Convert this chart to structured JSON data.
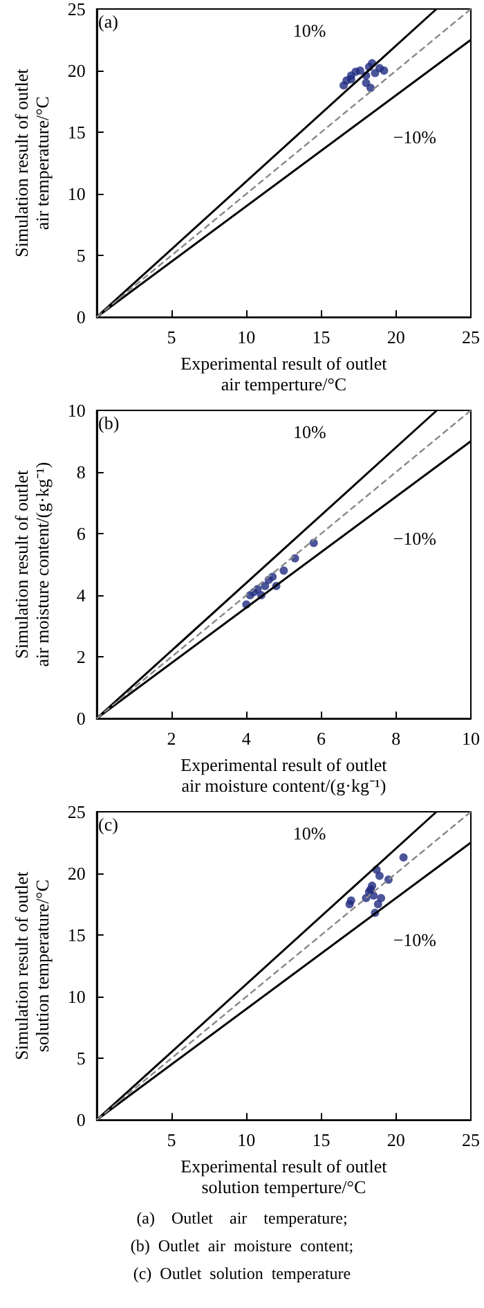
{
  "chart_data": [
    {
      "type": "scatter",
      "title": "(a)",
      "xlabel": "Experimental result of outlet\nair temperture/°C",
      "ylabel": "Simulation result of outlet\nair temperature/°C",
      "xlim": [
        0,
        25
      ],
      "ylim": [
        0,
        25
      ],
      "xticks": [
        5,
        10,
        15,
        20,
        25
      ],
      "yticks": [
        0,
        5,
        10,
        15,
        20,
        25
      ],
      "marker": "circle",
      "grid": false,
      "legend": false,
      "series": [
        {
          "type": "line",
          "name": "10%",
          "marker": "none",
          "color": "#000000",
          "line_style": "solid",
          "x": [
            0,
            22.7
          ],
          "values": [
            0,
            25
          ]
        },
        {
          "type": "line",
          "name": "−10%",
          "marker": "none",
          "color": "#000000",
          "line_style": "solid",
          "x": [
            0,
            25
          ],
          "values": [
            0,
            22.5
          ]
        },
        {
          "type": "line",
          "marker": "none",
          "color": "#888888",
          "line_style": "dashed",
          "x": [
            0,
            25
          ],
          "values": [
            0,
            25
          ]
        },
        {
          "color": "#1f2a80",
          "x": [
            16.5,
            16.7,
            17.0,
            17.3,
            17.6,
            18.0,
            18.2,
            18.4,
            18.6,
            18.9,
            19.2,
            18.3,
            18.0,
            17.0
          ],
          "values": [
            18.8,
            19.2,
            19.6,
            19.9,
            20.0,
            19.6,
            20.3,
            20.6,
            19.8,
            20.2,
            20.0,
            18.6,
            19.0,
            19.3
          ]
        }
      ]
    },
    {
      "type": "scatter",
      "title": "(b)",
      "xlabel": "Experimental result of outlet\nair moisture content/(g·kg⁻¹)",
      "ylabel": "Simulation result of outlet\nair moisture content/(g·kg⁻¹)",
      "xlim": [
        0,
        10
      ],
      "ylim": [
        0,
        10
      ],
      "xticks": [
        2,
        4,
        6,
        8,
        10
      ],
      "yticks": [
        0,
        2,
        4,
        6,
        8,
        10
      ],
      "marker": "circle",
      "grid": false,
      "legend": false,
      "series": [
        {
          "type": "line",
          "name": "10%",
          "marker": "none",
          "color": "#000000",
          "line_style": "solid",
          "x": [
            0,
            9.09
          ],
          "values": [
            0,
            10
          ]
        },
        {
          "type": "line",
          "name": "−10%",
          "marker": "none",
          "color": "#000000",
          "line_style": "solid",
          "x": [
            0,
            10
          ],
          "values": [
            0,
            9
          ]
        },
        {
          "type": "line",
          "marker": "none",
          "color": "#888888",
          "line_style": "dashed",
          "x": [
            0,
            10
          ],
          "values": [
            0,
            10
          ]
        },
        {
          "color": "#1f2a80",
          "x": [
            4.0,
            4.1,
            4.2,
            4.3,
            4.5,
            4.6,
            4.7,
            4.8,
            5.0,
            5.3,
            5.8,
            4.4
          ],
          "values": [
            3.7,
            4.0,
            4.1,
            4.2,
            4.3,
            4.5,
            4.6,
            4.3,
            4.8,
            5.2,
            5.7,
            4.0
          ]
        }
      ]
    },
    {
      "type": "scatter",
      "title": "(c)",
      "xlabel": "Experimental result of outlet\nsolution temperture/°C",
      "ylabel": "Simulation result of outlet\nsolution temperature/°C",
      "xlim": [
        0,
        25
      ],
      "ylim": [
        0,
        25
      ],
      "xticks": [
        5,
        10,
        15,
        20,
        25
      ],
      "yticks": [
        0,
        5,
        10,
        15,
        20,
        25
      ],
      "marker": "circle",
      "grid": false,
      "legend": false,
      "series": [
        {
          "type": "line",
          "name": "10%",
          "marker": "none",
          "color": "#000000",
          "line_style": "solid",
          "x": [
            0,
            22.7
          ],
          "values": [
            0,
            25
          ]
        },
        {
          "type": "line",
          "name": "−10%",
          "marker": "none",
          "color": "#000000",
          "line_style": "solid",
          "x": [
            0,
            25
          ],
          "values": [
            0,
            22.5
          ]
        },
        {
          "type": "line",
          "marker": "none",
          "color": "#888888",
          "line_style": "dashed",
          "x": [
            0,
            25
          ],
          "values": [
            0,
            25
          ]
        },
        {
          "color": "#1f2a80",
          "x": [
            16.9,
            17.0,
            18.0,
            18.2,
            18.4,
            18.5,
            18.7,
            18.8,
            19.0,
            18.6,
            19.5,
            20.5,
            18.9,
            18.3
          ],
          "values": [
            17.5,
            17.8,
            18.0,
            18.5,
            19.0,
            18.2,
            20.3,
            17.5,
            18.0,
            16.8,
            19.5,
            21.3,
            19.8,
            18.7
          ]
        }
      ],
      "annotations": [
        "(a)    Outlet    air    temperature;",
        "(b)  Outlet  air  moisture  content;",
        "(c)  Outlet  solution  temperature"
      ]
    }
  ]
}
